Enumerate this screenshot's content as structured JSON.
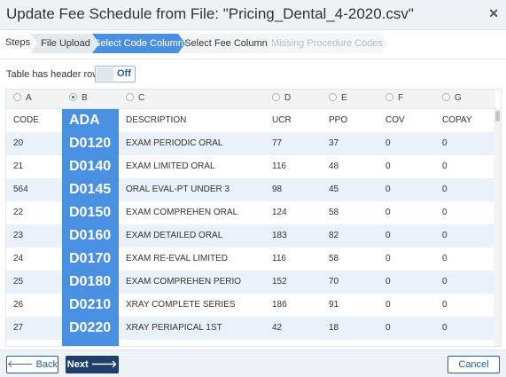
{
  "dialog": {
    "title": "Update Fee Schedule from File: \"Pricing_Dental_4-2020.csv\"",
    "close_icon": "close-icon"
  },
  "steps": {
    "label": "Steps",
    "items": [
      {
        "label": "File Upload",
        "state": "done"
      },
      {
        "label": "Select Code Column",
        "state": "active"
      },
      {
        "label": "Select Fee Column",
        "state": "future"
      },
      {
        "label": "Missing Procedure Codes",
        "state": "disabled"
      }
    ]
  },
  "options": {
    "header_row_label": "Table has header row",
    "header_row_toggle": "Off"
  },
  "table": {
    "column_letters": [
      "A",
      "B",
      "C",
      "D",
      "E",
      "F",
      "G"
    ],
    "selected_column": "B",
    "headers": [
      "CODE",
      "ADA",
      "DESCRIPTION",
      "UCR",
      "PPO",
      "COV",
      "COPAY"
    ],
    "rows": [
      [
        "20",
        "D0120",
        "EXAM PERIODIC ORAL",
        "77",
        "37",
        "0",
        "0"
      ],
      [
        "21",
        "D0140",
        "EXAM LIMITED ORAL",
        "116",
        "48",
        "0",
        "0"
      ],
      [
        "564",
        "D0145",
        "ORAL EVAL-PT UNDER 3",
        "98",
        "45",
        "0",
        "0"
      ],
      [
        "22",
        "D0150",
        "EXAM COMPREHEN ORAL",
        "124",
        "58",
        "0",
        "0"
      ],
      [
        "23",
        "D0160",
        "EXAM DETAILED ORAL",
        "183",
        "82",
        "0",
        "0"
      ],
      [
        "24",
        "D0170",
        "EXAM RE-EVAL LIMITED",
        "116",
        "58",
        "0",
        "0"
      ],
      [
        "25",
        "D0180",
        "EXAM COMPREHEN PERIO",
        "152",
        "70",
        "0",
        "0"
      ],
      [
        "26",
        "D0210",
        "XRAY COMPLETE SERIES",
        "186",
        "91",
        "0",
        "0"
      ],
      [
        "27",
        "D0220",
        "XRAY PERIAPICAL 1ST",
        "42",
        "18",
        "0",
        "0"
      ]
    ]
  },
  "footer": {
    "back_label": "Back",
    "next_label": "Next",
    "cancel_label": "Cancel"
  },
  "colors": {
    "accent": "#4a90e2",
    "primary_button": "#1f3f6b",
    "stripe": "#eaf1fa"
  }
}
